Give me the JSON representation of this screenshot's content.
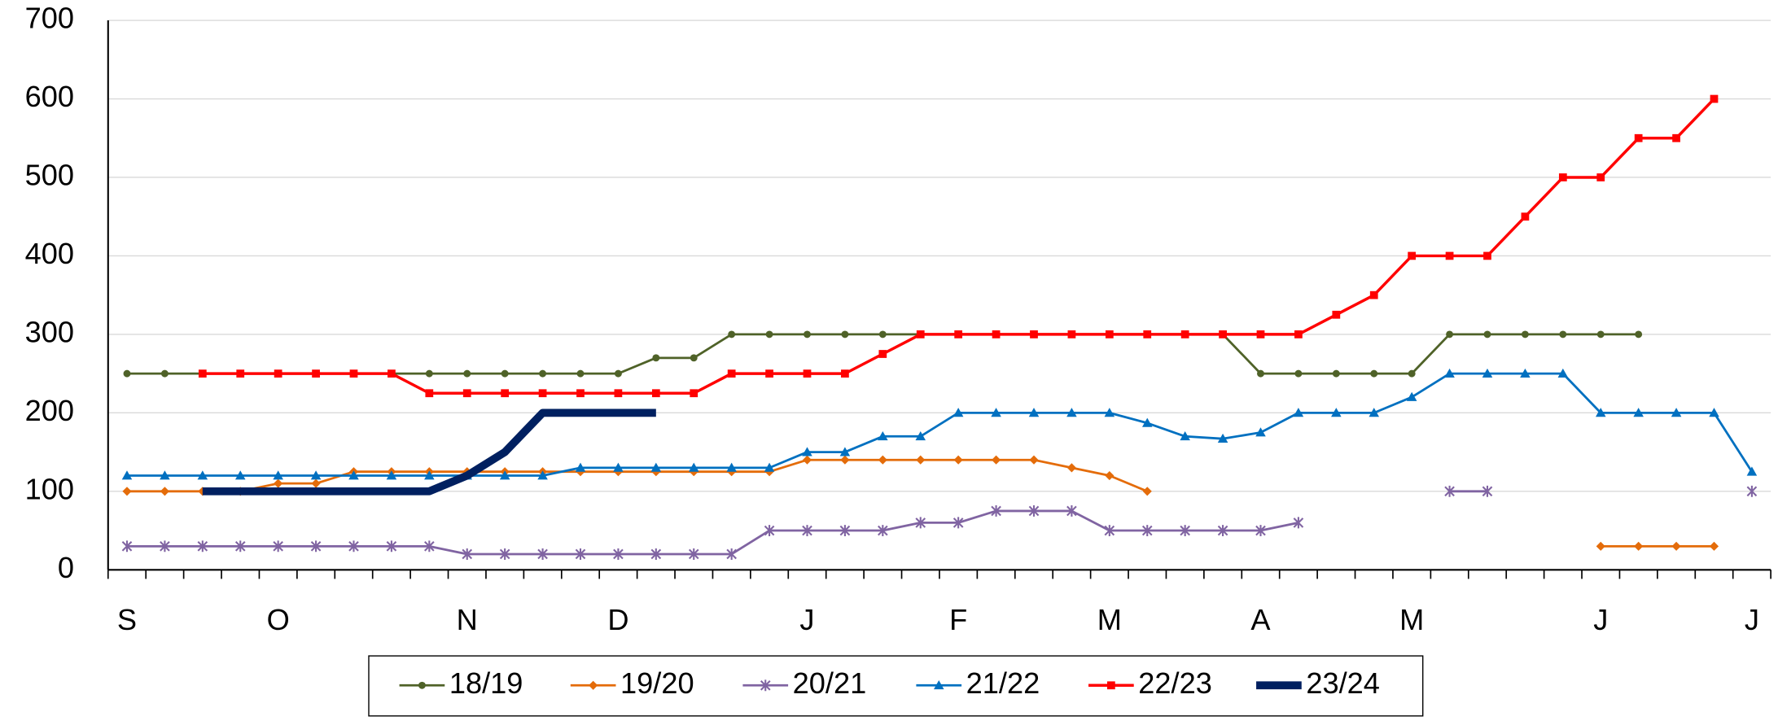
{
  "chart_data": {
    "type": "line",
    "categories": [
      "S",
      null,
      null,
      null,
      "O",
      null,
      null,
      null,
      null,
      "N",
      null,
      null,
      null,
      "D",
      null,
      null,
      null,
      null,
      "J",
      null,
      null,
      null,
      "F",
      null,
      null,
      null,
      "M",
      null,
      null,
      null,
      "A",
      null,
      null,
      null,
      "M",
      null,
      null,
      null,
      null,
      "J",
      null,
      null,
      null,
      "J"
    ],
    "ylim": [
      0,
      700
    ],
    "yticks": [
      0,
      100,
      200,
      300,
      400,
      500,
      600,
      700
    ],
    "grid": true,
    "legend": "bottom",
    "series": [
      {
        "name": "18/19",
        "color": "#4f6228",
        "marker": "circle",
        "width": 2,
        "values": [
          250,
          250,
          250,
          250,
          250,
          250,
          250,
          250,
          250,
          250,
          250,
          250,
          250,
          250,
          270,
          270,
          300,
          300,
          300,
          300,
          300,
          300,
          300,
          300,
          300,
          300,
          300,
          300,
          300,
          300,
          250,
          250,
          250,
          250,
          250,
          300,
          300,
          300,
          300,
          300,
          300,
          null,
          null,
          null
        ]
      },
      {
        "name": "19/20",
        "color": "#e46c0a",
        "marker": "diamond",
        "width": 2,
        "values": [
          100,
          100,
          100,
          100,
          110,
          110,
          125,
          125,
          125,
          125,
          125,
          125,
          125,
          125,
          125,
          125,
          125,
          125,
          140,
          140,
          140,
          140,
          140,
          140,
          140,
          130,
          120,
          100,
          null,
          null,
          null,
          null,
          null,
          null,
          null,
          null,
          null,
          null,
          null,
          30,
          30,
          30,
          30,
          null
        ]
      },
      {
        "name": "20/21",
        "color": "#8064a2",
        "marker": "star",
        "width": 2,
        "values": [
          30,
          30,
          30,
          30,
          30,
          30,
          30,
          30,
          30,
          20,
          20,
          20,
          20,
          20,
          20,
          20,
          20,
          50,
          50,
          50,
          50,
          60,
          60,
          75,
          75,
          75,
          50,
          50,
          50,
          50,
          50,
          60,
          null,
          null,
          null,
          100,
          100,
          null,
          null,
          null,
          null,
          null,
          null,
          100
        ]
      },
      {
        "name": "21/22",
        "color": "#0070c0",
        "marker": "triangle",
        "width": 2,
        "values": [
          120,
          120,
          120,
          120,
          120,
          120,
          120,
          120,
          120,
          120,
          120,
          120,
          130,
          130,
          130,
          130,
          130,
          130,
          150,
          150,
          170,
          170,
          200,
          200,
          200,
          200,
          200,
          187,
          170,
          167,
          175,
          200,
          200,
          200,
          220,
          250,
          250,
          250,
          250,
          200,
          200,
          200,
          200,
          125
        ]
      },
      {
        "name": "22/23",
        "color": "#ff0000",
        "marker": "square",
        "width": 2.5,
        "values": [
          null,
          null,
          250,
          250,
          250,
          250,
          250,
          250,
          225,
          225,
          225,
          225,
          225,
          225,
          225,
          225,
          250,
          250,
          250,
          250,
          275,
          300,
          300,
          300,
          300,
          300,
          300,
          300,
          300,
          300,
          300,
          300,
          325,
          350,
          400,
          400,
          400,
          450,
          500,
          500,
          550,
          550,
          600,
          null
        ]
      },
      {
        "name": "23/24",
        "color": "#002060",
        "marker": "none",
        "width": 7,
        "values": [
          null,
          null,
          100,
          100,
          100,
          100,
          100,
          100,
          100,
          120,
          150,
          200,
          200,
          200,
          200,
          null,
          null,
          null,
          null,
          null,
          null,
          null,
          null,
          null,
          null,
          null,
          null,
          null,
          null,
          null,
          null,
          null,
          null,
          null,
          null,
          null,
          null,
          null,
          null,
          null,
          null,
          null,
          null,
          null
        ]
      }
    ]
  }
}
